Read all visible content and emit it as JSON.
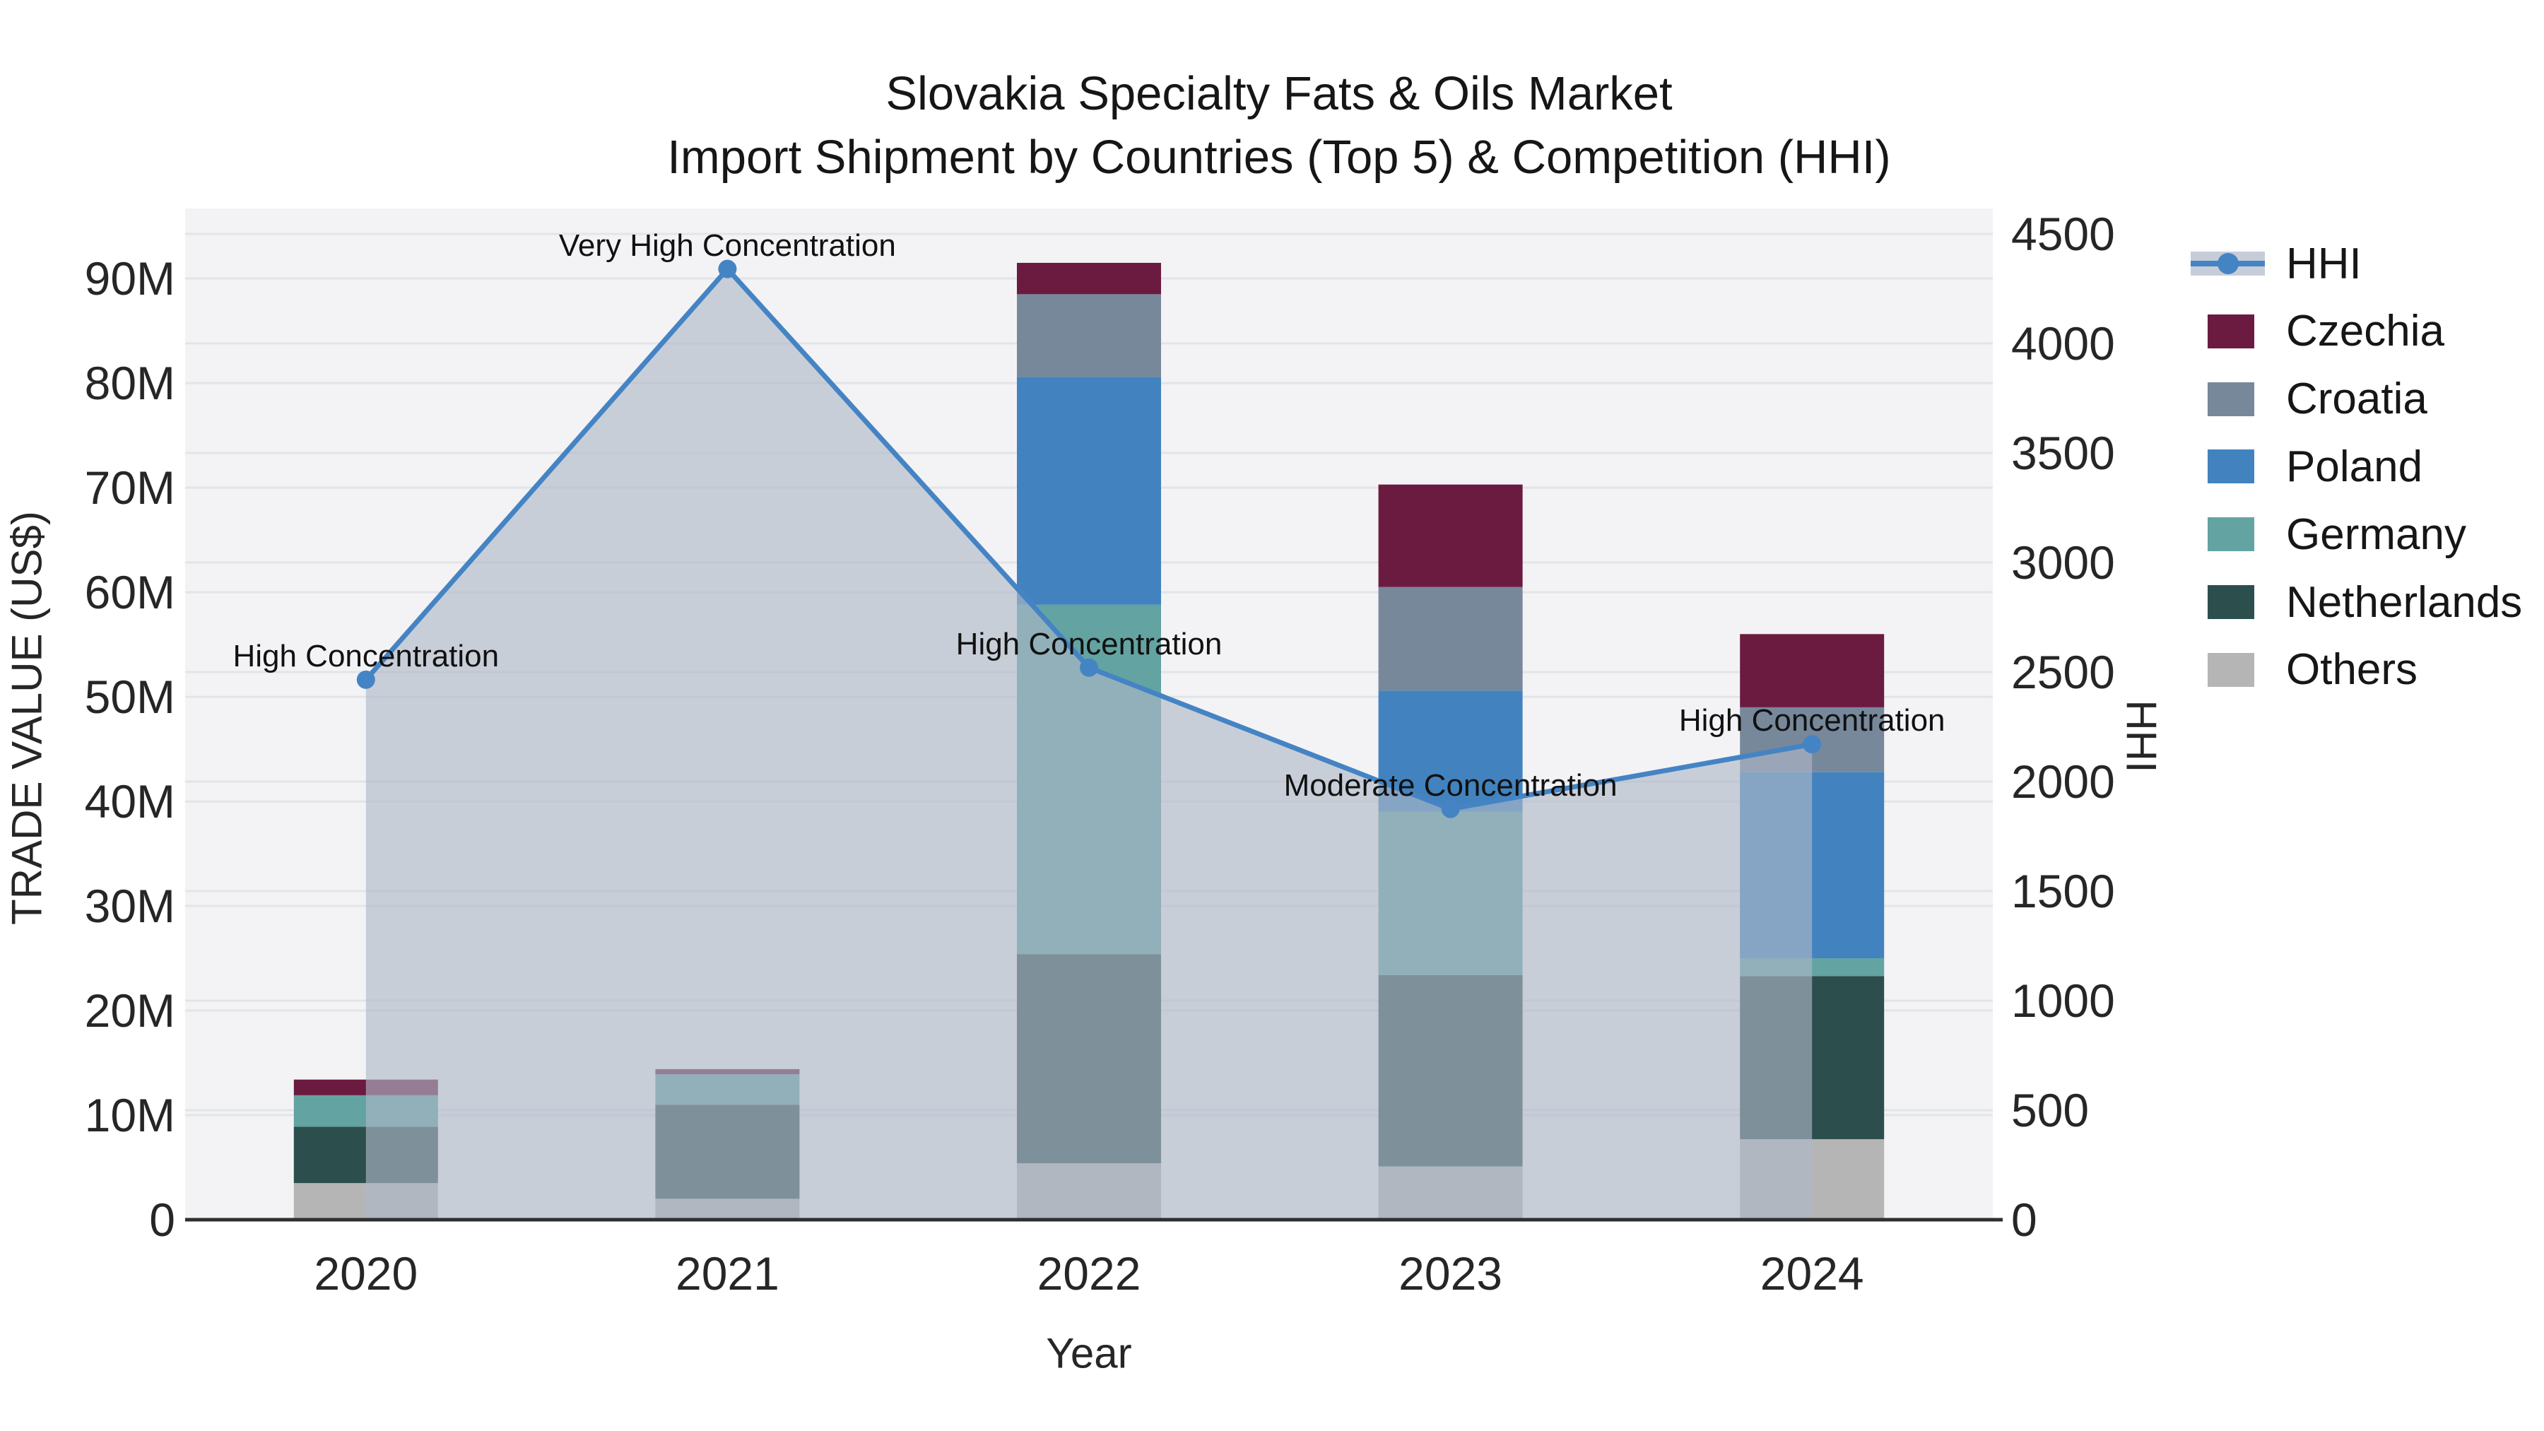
{
  "title": {
    "line1": "Slovakia Specialty Fats & Oils Market",
    "line2": "Import Shipment by Countries (Top 5) & Competition (HHI)"
  },
  "legend": {
    "items": [
      {
        "label": "HHI",
        "type": "line",
        "color": "#4584c4",
        "band": "#c6cdd9"
      },
      {
        "label": "Czechia",
        "type": "swatch",
        "color": "#6b1b40"
      },
      {
        "label": "Croatia",
        "type": "swatch",
        "color": "#77889b"
      },
      {
        "label": "Poland",
        "type": "swatch",
        "color": "#4283bf"
      },
      {
        "label": "Germany",
        "type": "swatch",
        "color": "#63a3a2"
      },
      {
        "label": "Netherlands",
        "type": "swatch",
        "color": "#2c4f4d"
      },
      {
        "label": "Others",
        "type": "swatch",
        "color": "#b5b5b5"
      }
    ]
  },
  "chart_data": {
    "type": "bar",
    "subtype": "stacked-bars-with-line-overlay-dual-axis",
    "title": "Slovakia Specialty Fats & Oils Market — Import Shipment by Countries (Top 5) & Competition (HHI)",
    "categories": [
      "2020",
      "2021",
      "2022",
      "2023",
      "2024"
    ],
    "bar_unit": "million US$ (trade value)",
    "series": [
      {
        "name": "Czechia",
        "color": "#6b1b40",
        "values": [
          1.5,
          0.5,
          3.0,
          9.8,
          7.0
        ]
      },
      {
        "name": "Croatia",
        "color": "#77889b",
        "values": [
          0,
          0,
          7.9,
          9.9,
          6.2
        ]
      },
      {
        "name": "Poland",
        "color": "#4283bf",
        "values": [
          0,
          0,
          21.8,
          11.6,
          17.8
        ]
      },
      {
        "name": "Germany",
        "color": "#63a3a2",
        "values": [
          3.0,
          2.9,
          33.4,
          15.6,
          1.7
        ]
      },
      {
        "name": "Netherlands",
        "color": "#2c4f4d",
        "values": [
          5.4,
          9.0,
          20.0,
          18.3,
          15.6
        ]
      },
      {
        "name": "Others",
        "color": "#b5b5b5",
        "values": [
          3.5,
          2.0,
          5.4,
          5.1,
          7.7
        ]
      }
    ],
    "stack_totals": [
      13.4,
      14.4,
      91.5,
      70.3,
      56.0
    ],
    "line_series": {
      "name": "HHI",
      "axis": "right",
      "color": "#4584c4",
      "fill": "rgba(174,184,200,0.63)",
      "values": [
        2465,
        4340,
        2520,
        1875,
        2170
      ]
    },
    "annotations": [
      {
        "category": "2020",
        "text": "High Concentration"
      },
      {
        "category": "2021",
        "text": "Very High Concentration"
      },
      {
        "category": "2022",
        "text": "High Concentration"
      },
      {
        "category": "2023",
        "text": "Moderate Concentration"
      },
      {
        "category": "2024",
        "text": "High Concentration"
      }
    ],
    "x_axis": {
      "title": "Year"
    },
    "left_axis": {
      "title": "TRADE VALUE (US$)",
      "tick_labels": [
        "0",
        "10M",
        "20M",
        "30M",
        "40M",
        "50M",
        "60M",
        "70M",
        "80M",
        "90M"
      ],
      "tick_values": [
        0,
        10,
        20,
        30,
        40,
        50,
        60,
        70,
        80,
        90
      ],
      "range": [
        0,
        96.7
      ],
      "grid": true
    },
    "right_axis": {
      "title": "HHI",
      "tick_labels": [
        "0",
        "500",
        "1000",
        "1500",
        "2000",
        "2500",
        "3000",
        "3500",
        "4000",
        "4500"
      ],
      "tick_values": [
        0,
        500,
        1000,
        1500,
        2000,
        2500,
        3000,
        3500,
        4000,
        4500
      ],
      "range": [
        0,
        4616
      ],
      "grid": true
    },
    "legend_position": "right",
    "plot_background": "#f3f3f5",
    "grid_color": "#e2e4e8",
    "axis_line_color": "#2f2f2f"
  }
}
